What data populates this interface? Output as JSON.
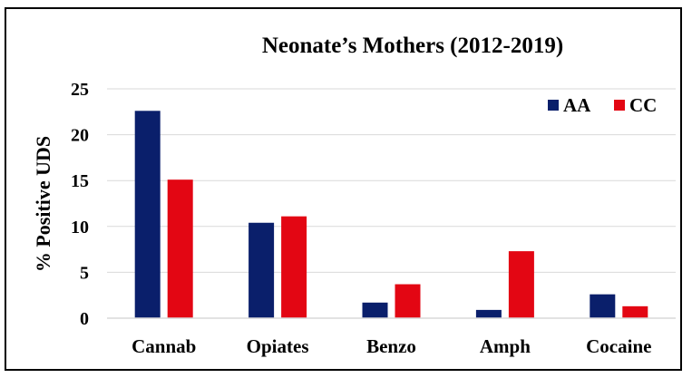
{
  "chart_data": {
    "type": "bar",
    "title": "Neonate’s Mothers (2012-2019)",
    "xlabel": "",
    "ylabel": "% Positive UDS",
    "categories": [
      "Cannab",
      "Opiates",
      "Benzo",
      "Amph",
      "Cocaine"
    ],
    "series": [
      {
        "name": "AA",
        "color": "#0a1f6b",
        "values": [
          22.6,
          10.4,
          1.7,
          0.9,
          2.6
        ]
      },
      {
        "name": "CC",
        "color": "#e30613",
        "values": [
          15.1,
          11.1,
          3.7,
          7.3,
          1.3
        ]
      }
    ],
    "ylim": [
      0,
      25
    ],
    "yticks": [
      "0",
      "5",
      "10",
      "15",
      "20",
      "25"
    ],
    "grid": true,
    "legend_position": "top-right"
  }
}
